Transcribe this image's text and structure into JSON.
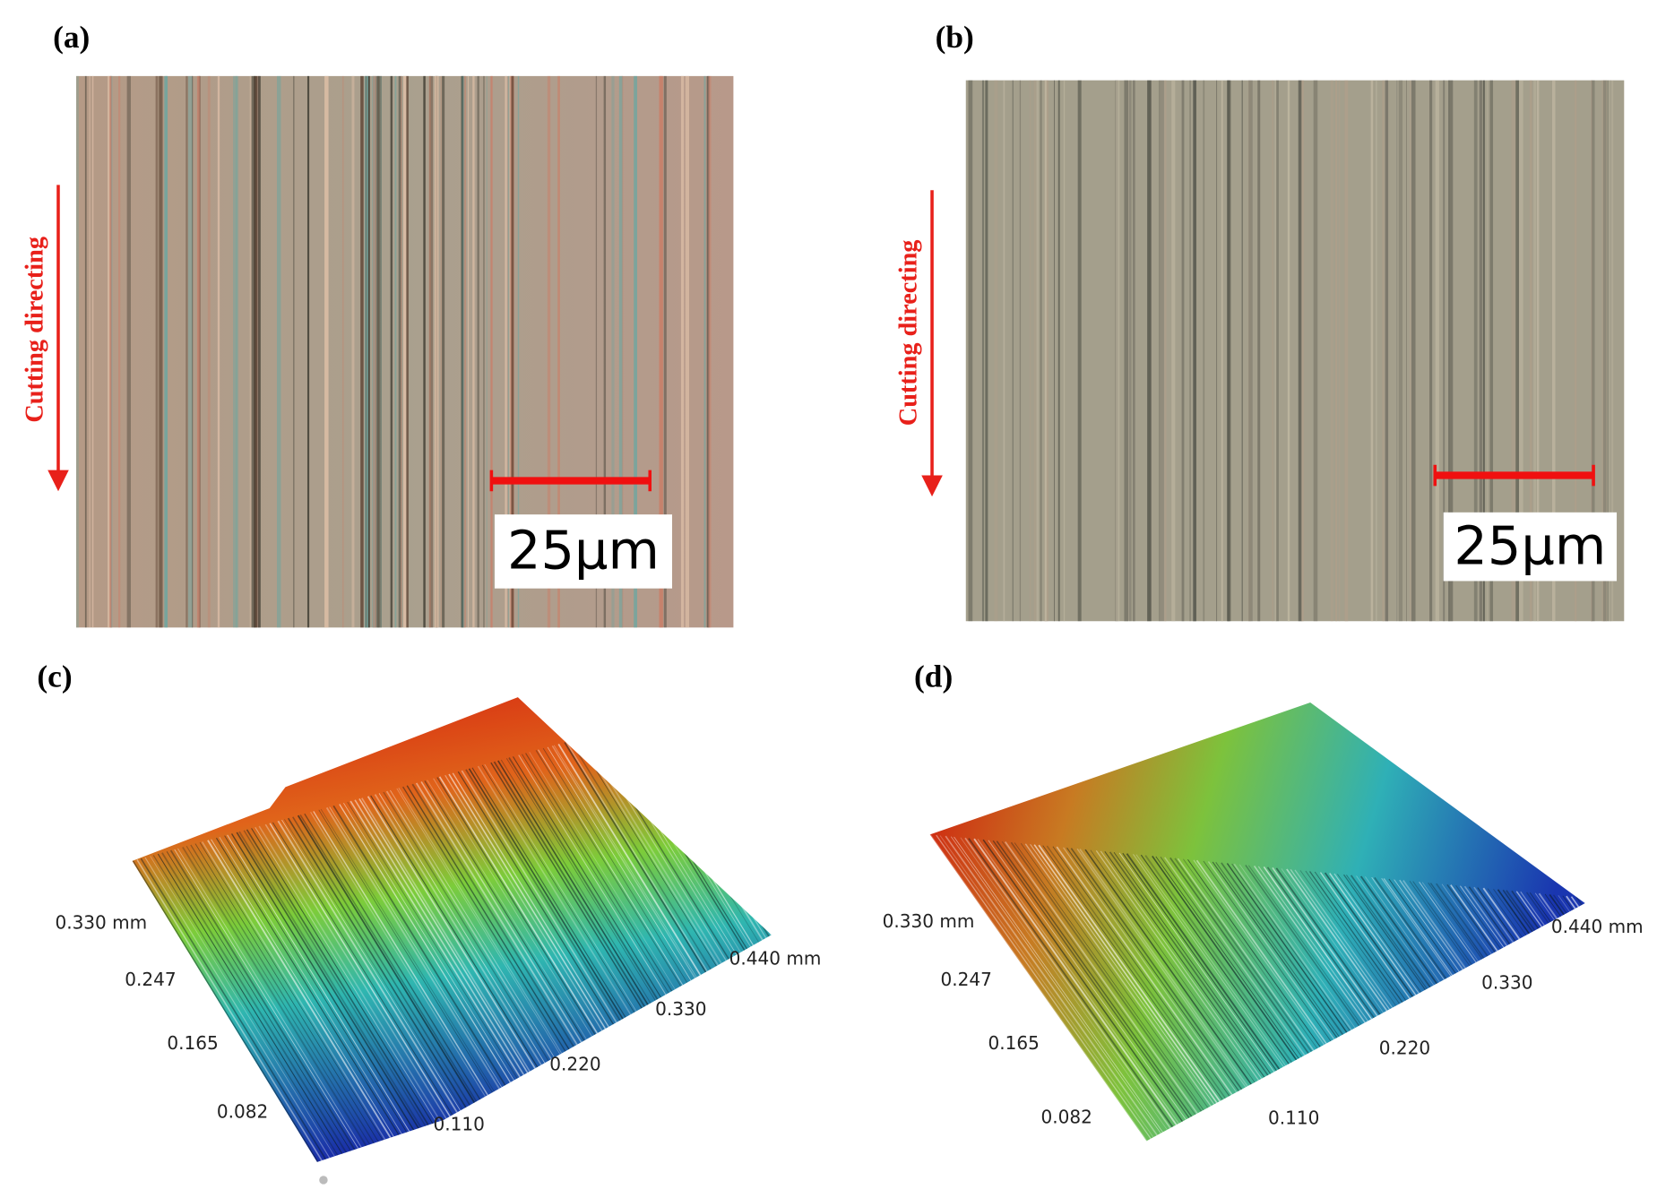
{
  "panels": [
    {
      "label": "(a)",
      "direction_label": "Cutting directing",
      "scale_bar": "25μm"
    },
    {
      "label": "(b)",
      "direction_label": "Cutting directing",
      "scale_bar": "25μm"
    },
    {
      "label": "(c)",
      "y_axis_labels": [
        "0.330 mm",
        "0.247",
        "0.165",
        "0.082"
      ],
      "x_axis_labels": [
        "0.110",
        "0.220",
        "0.330",
        "0.440 mm"
      ]
    },
    {
      "label": "(d)",
      "y_axis_labels": [
        "0.330 mm",
        "0.247",
        "0.165",
        "0.082"
      ],
      "x_axis_labels": [
        "0.110",
        "0.220",
        "0.330",
        "0.440 mm"
      ]
    }
  ]
}
